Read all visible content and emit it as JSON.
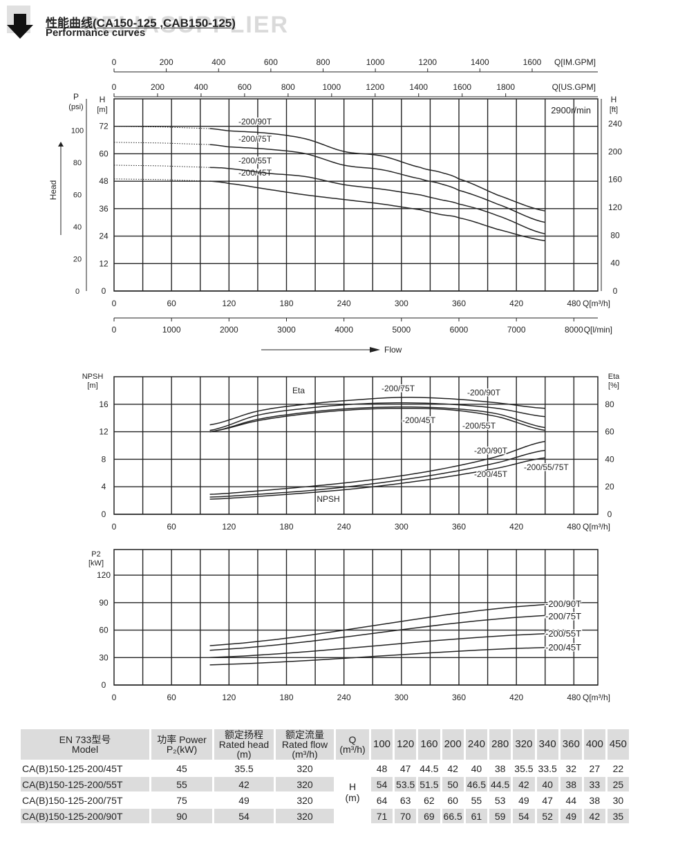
{
  "header": {
    "title": "性能曲线(CA150-125 ,CAB150-125)",
    "subtitle": "Performance curves",
    "watermark": "RELIASUPPLIER"
  },
  "chart_data": [
    {
      "type": "line",
      "title": "Head",
      "speed": "2900r/min",
      "xlabel": "Q[m³/h]",
      "ylabel_left": "H [m]",
      "ylabel_p": "P (psi)",
      "ylabel_right": "H [ft]",
      "flow_label": "Flow",
      "head_label": "Head",
      "xlim": [
        0,
        505
      ],
      "ylim": [
        0,
        84
      ],
      "x_ticks": [
        0,
        60,
        120,
        180,
        240,
        300,
        360,
        420,
        480
      ],
      "y_ticks": [
        0,
        12,
        24,
        36,
        48,
        60,
        72
      ],
      "psi_ticks": [
        0,
        20,
        40,
        60,
        80,
        100
      ],
      "ft_ticks": [
        0,
        40,
        80,
        120,
        160,
        200,
        240
      ],
      "imgpm_label": "Q[IM.GPM]",
      "imgpm_ticks": [
        0,
        200,
        400,
        600,
        800,
        1000,
        1200,
        1400,
        1600
      ],
      "usgpm_label": "Q[US.GPM]",
      "usgpm_ticks": [
        0,
        200,
        400,
        600,
        800,
        1000,
        1200,
        1400,
        1600,
        1800
      ],
      "lmin_label": "Q[l/min]",
      "lmin_ticks": [
        0,
        1000,
        2000,
        3000,
        4000,
        5000,
        6000,
        7000,
        8000
      ],
      "x": [
        100,
        120,
        160,
        200,
        240,
        280,
        320,
        340,
        360,
        400,
        450
      ],
      "series": [
        {
          "name": "-200/45T",
          "shutoff": 49,
          "values": [
            48,
            47,
            44.5,
            42,
            40,
            38,
            35.5,
            33.5,
            32,
            27,
            22
          ]
        },
        {
          "name": "-200/55T",
          "shutoff": 55,
          "values": [
            54,
            53.5,
            51.5,
            50,
            46.5,
            44.5,
            42,
            40,
            38,
            33,
            25
          ]
        },
        {
          "name": "-200/75T",
          "shutoff": 65,
          "values": [
            64,
            63,
            62,
            60,
            55,
            53,
            49,
            47,
            44,
            38,
            30
          ]
        },
        {
          "name": "-200/90T",
          "shutoff": 72,
          "values": [
            71,
            70,
            69,
            66.5,
            61,
            59,
            54,
            52,
            49,
            42,
            35
          ]
        }
      ]
    },
    {
      "type": "line",
      "title": "NPSH / Eta",
      "xlabel": "Q[m³/h]",
      "ylabel_left": "NPSH [m]",
      "ylabel_right": "Eta [%]",
      "eta_label": "Eta",
      "npsh_label": "NPSH",
      "xlim": [
        0,
        505
      ],
      "ylim": [
        0,
        20
      ],
      "y_ticks": [
        0,
        4,
        8,
        12,
        16
      ],
      "eta_ticks": [
        0,
        20,
        40,
        60,
        80
      ],
      "x_ticks": [
        0,
        60,
        120,
        180,
        240,
        300,
        360,
        420,
        480
      ],
      "x": [
        100,
        150,
        200,
        250,
        300,
        350,
        400,
        450
      ],
      "eta_series": [
        {
          "name": "-200/45T",
          "values": [
            60,
            68,
            73,
            76,
            77,
            76,
            71,
            61
          ]
        },
        {
          "name": "-200/55T",
          "values": [
            60,
            69,
            74,
            77,
            78,
            77,
            73,
            63
          ]
        },
        {
          "name": "-200/75T",
          "values": [
            61,
            72,
            77,
            80,
            81,
            80,
            77,
            71
          ]
        },
        {
          "name": "-200/90T",
          "values": [
            65,
            75,
            80,
            83,
            85,
            84,
            81,
            77
          ]
        }
      ],
      "npsh_series": [
        {
          "name": "-200/45T",
          "values": [
            2.2,
            2.6,
            3.1,
            3.7,
            4.5,
            5.5,
            6.7,
            8.2
          ]
        },
        {
          "name": "-200/55/75T",
          "values": [
            2.5,
            2.9,
            3.4,
            4.1,
            5.0,
            6.1,
            7.5,
            9.3
          ]
        },
        {
          "name": "-200/90T",
          "values": [
            2.9,
            3.4,
            4.0,
            4.7,
            5.6,
            6.8,
            8.4,
            10.6
          ]
        }
      ],
      "labels": {
        "l90": "-200/90T",
        "l75": "-200/75T",
        "l55": "-200/55T",
        "l45": "-200/45T",
        "n90": "-200/90T",
        "n5575": "-200/55/75T",
        "n45": "-200/45T"
      }
    },
    {
      "type": "line",
      "title": "Power",
      "xlabel": "Q[m³/h]",
      "ylabel": "P2 [kW]",
      "xlim": [
        0,
        505
      ],
      "ylim": [
        0,
        148
      ],
      "y_ticks": [
        0,
        30,
        60,
        90,
        120
      ],
      "x_ticks": [
        0,
        60,
        120,
        180,
        240,
        300,
        360,
        420,
        480
      ],
      "x": [
        100,
        450
      ],
      "series": [
        {
          "name": "-200/90T",
          "values": [
            43,
            88
          ]
        },
        {
          "name": "-200/75T",
          "values": [
            38,
            76
          ]
        },
        {
          "name": "-200/55T",
          "values": [
            30,
            56
          ]
        },
        {
          "name": "-200/45T",
          "values": [
            22,
            41
          ]
        }
      ]
    }
  ],
  "table": {
    "headers": {
      "model": [
        "EN 733型号",
        "Model"
      ],
      "power": [
        "功率 Power",
        "P₂(kW)"
      ],
      "head": [
        "额定扬程",
        "Rated head",
        "(m)"
      ],
      "flow": [
        "额定流量",
        "Rated flow",
        "(m³/h)"
      ],
      "q": [
        "Q",
        "(m³/h)"
      ],
      "h": [
        "H",
        "(m)"
      ]
    },
    "q_values": [
      "100",
      "120",
      "160",
      "200",
      "240",
      "280",
      "320",
      "340",
      "360",
      "400",
      "450"
    ],
    "rows": [
      {
        "model": "CA(B)150-125-200/45T",
        "power": "45",
        "head": "35.5",
        "flow": "320",
        "h": [
          "48",
          "47",
          "44.5",
          "42",
          "40",
          "38",
          "35.5",
          "33.5",
          "32",
          "27",
          "22"
        ]
      },
      {
        "model": "CA(B)150-125-200/55T",
        "power": "55",
        "head": "42",
        "flow": "320",
        "h": [
          "54",
          "53.5",
          "51.5",
          "50",
          "46.5",
          "44.5",
          "42",
          "40",
          "38",
          "33",
          "25"
        ]
      },
      {
        "model": "CA(B)150-125-200/75T",
        "power": "75",
        "head": "49",
        "flow": "320",
        "h": [
          "64",
          "63",
          "62",
          "60",
          "55",
          "53",
          "49",
          "47",
          "44",
          "38",
          "30"
        ]
      },
      {
        "model": "CA(B)150-125-200/90T",
        "power": "90",
        "head": "54",
        "flow": "320",
        "h": [
          "71",
          "70",
          "69",
          "66.5",
          "61",
          "59",
          "54",
          "52",
          "49",
          "42",
          "35"
        ]
      }
    ]
  }
}
